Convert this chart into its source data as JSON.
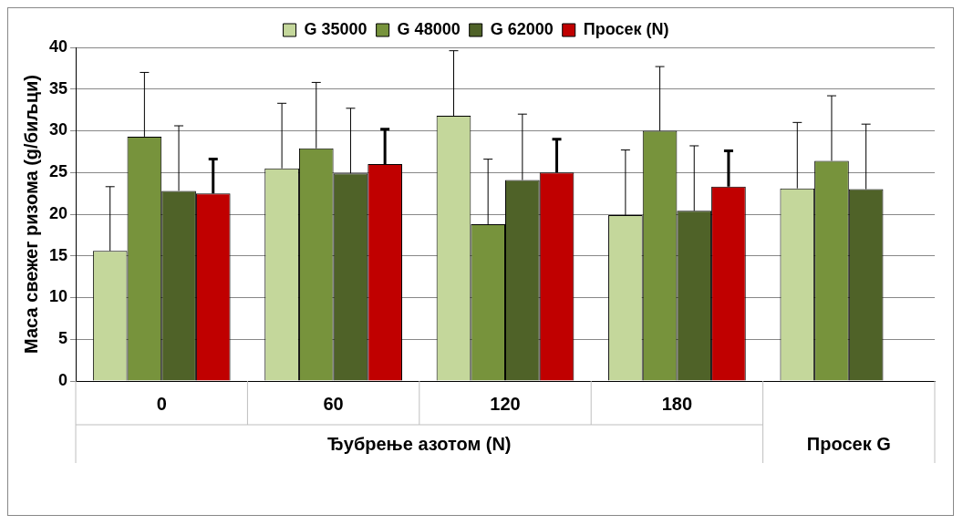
{
  "chart_data": {
    "type": "bar",
    "ylabel": "Маса свежег ризома (g/биљци)",
    "categories": [
      "0",
      "60",
      "120",
      "180",
      null
    ],
    "series": [
      {
        "name": "G 35000",
        "color": "#c4d79b",
        "values": [
          15.6,
          25.5,
          31.8,
          19.9,
          23.1
        ],
        "errors": [
          [
            15.6,
            23.3
          ],
          [
            25.5,
            33.3
          ],
          [
            31.8,
            39.6
          ],
          [
            19.9,
            27.7
          ],
          [
            23.1,
            31.0
          ]
        ]
      },
      {
        "name": "G 48000",
        "color": "#77933c",
        "values": [
          29.3,
          27.9,
          18.8,
          30.0,
          26.4
        ],
        "errors": [
          [
            29.3,
            37.0
          ],
          [
            27.9,
            35.8
          ],
          [
            18.8,
            26.6
          ],
          [
            30.0,
            37.7
          ],
          [
            26.4,
            34.2
          ]
        ]
      },
      {
        "name": "G 62000",
        "color": "#4f6228",
        "values": [
          22.8,
          24.9,
          24.1,
          20.4,
          23.0
        ],
        "errors": [
          [
            22.8,
            30.6
          ],
          [
            24.9,
            32.7
          ],
          [
            24.1,
            32.0
          ],
          [
            20.4,
            28.2
          ],
          [
            23.0,
            30.8
          ]
        ]
      },
      {
        "name": "Просек (N)",
        "color": "#c00000",
        "values": [
          22.5,
          26.0,
          25.0,
          23.3,
          null
        ],
        "errors": [
          [
            22.5,
            26.6
          ],
          [
            26.0,
            30.2
          ],
          [
            25.0,
            29.0
          ],
          [
            23.3,
            27.6
          ],
          null
        ]
      }
    ],
    "ylim": [
      0,
      40
    ],
    "yticks": [
      0,
      5,
      10,
      15,
      20,
      25,
      30,
      35,
      40
    ],
    "grid": "y",
    "legend": "top",
    "annotations": [
      "Ђубрење азотом (N)",
      "Просек G"
    ]
  }
}
